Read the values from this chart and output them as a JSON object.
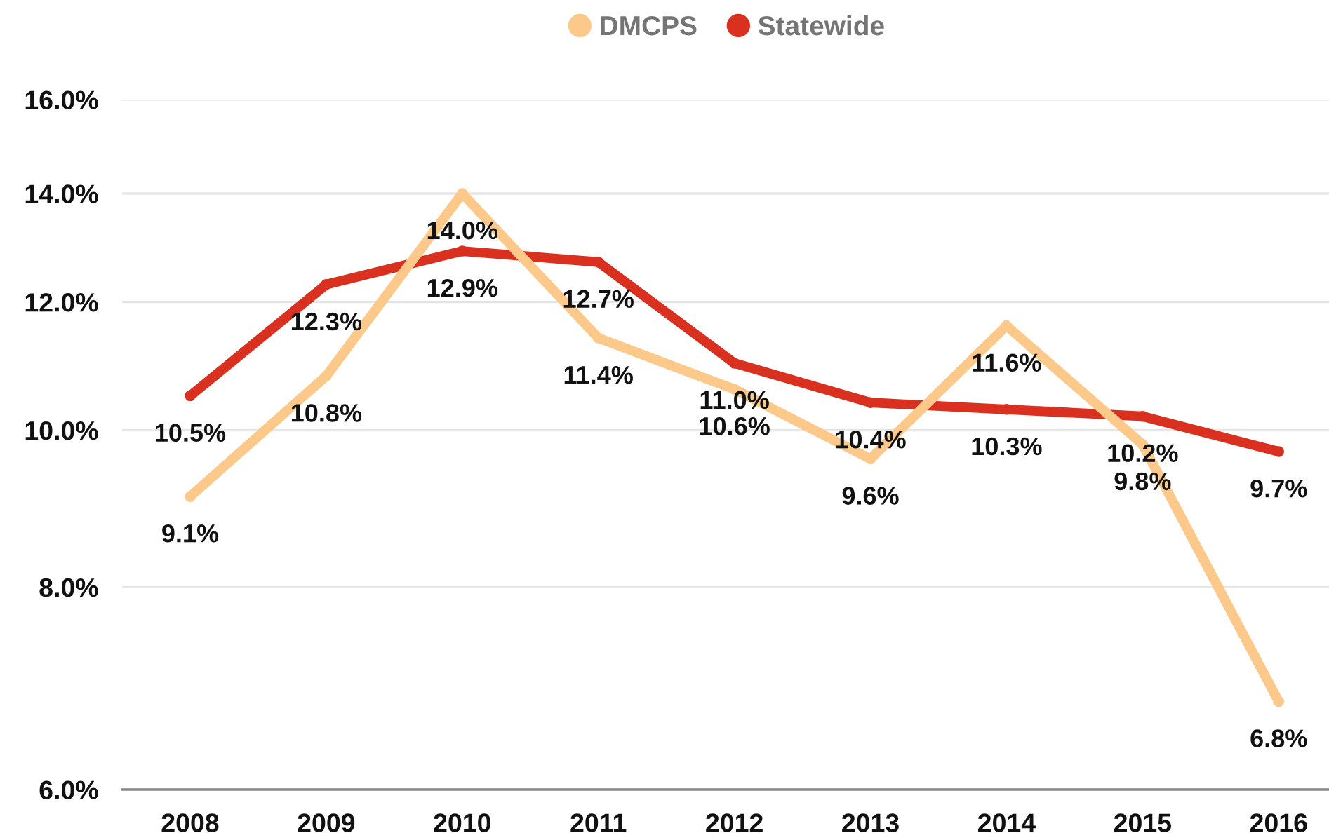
{
  "chart_data": {
    "type": "line",
    "categories": [
      "2008",
      "2009",
      "2010",
      "2011",
      "2012",
      "2013",
      "2014",
      "2015",
      "2016"
    ],
    "series": [
      {
        "name": "DMCPS",
        "color": "#fdc98a",
        "values": [
          9.1,
          10.8,
          14.0,
          11.4,
          10.6,
          9.6,
          11.6,
          9.8,
          6.8
        ],
        "value_labels": [
          "9.1%",
          "10.8%",
          "14.0%",
          "11.4%",
          "10.6%",
          "9.6%",
          "11.6%",
          "9.8%",
          "6.8%"
        ]
      },
      {
        "name": "Statewide",
        "color": "#d93020",
        "values": [
          10.5,
          12.3,
          12.9,
          12.7,
          11.0,
          10.4,
          10.3,
          10.2,
          9.7
        ],
        "value_labels": [
          "10.5%",
          "12.3%",
          "12.9%",
          "12.7%",
          "11.0%",
          "10.4%",
          "10.3%",
          "10.2%",
          "9.7%"
        ]
      }
    ],
    "log": "y",
    "ylim": [
      6,
      16
    ],
    "yticks": [
      {
        "value": 6,
        "label": "6.0%"
      },
      {
        "value": 8,
        "label": "8.0%"
      },
      {
        "value": 10,
        "label": "10.0%"
      },
      {
        "value": 12,
        "label": "12.0%"
      },
      {
        "value": 14,
        "label": "14.0%"
      },
      {
        "value": 16,
        "label": "16.0%"
      }
    ],
    "grid": "y",
    "legend": "top",
    "marker": "circle",
    "line_style": "solid"
  }
}
